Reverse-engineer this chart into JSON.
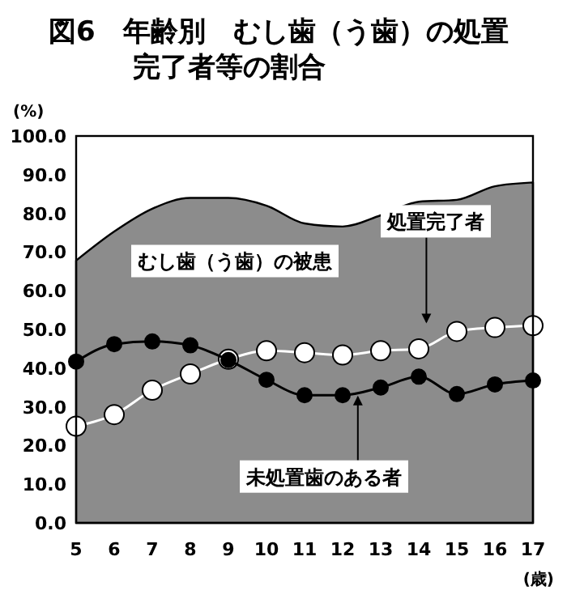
{
  "chart_data": {
    "type": "line",
    "title": "図6　年齢別　むし歯（う歯）の処置完了者等の割合",
    "ylabel": "(%)",
    "xlabel": "(歳)",
    "x": [
      5,
      6,
      7,
      8,
      9,
      10,
      11,
      12,
      13,
      14,
      15,
      16,
      17
    ],
    "xlim": [
      5,
      17
    ],
    "xticks": [
      5,
      6,
      7,
      8,
      9,
      10,
      11,
      12,
      13,
      14,
      15,
      16,
      17
    ],
    "ylim": [
      0,
      100
    ],
    "yticks": [
      {
        "value": 0,
        "label": "0.0"
      },
      {
        "value": 10,
        "label": "10.0"
      },
      {
        "value": 20,
        "label": "20.0"
      },
      {
        "value": 30,
        "label": "30.0"
      },
      {
        "value": 40,
        "label": "40.0"
      },
      {
        "value": 50,
        "label": "50.0"
      },
      {
        "value": 60,
        "label": "60.0"
      },
      {
        "value": 70,
        "label": "70.0"
      },
      {
        "value": 80,
        "label": "80.0"
      },
      {
        "value": 90,
        "label": "90.0"
      },
      {
        "value": 100,
        "label": "100.0"
      }
    ],
    "grid": false,
    "legend": false,
    "series": [
      {
        "name": "むし歯（う歯）の被患",
        "type": "area",
        "color": "#8c8c8c",
        "marker": "none",
        "values": [
          67.8,
          75.3,
          81.2,
          84,
          84,
          82,
          77.4,
          76.6,
          79.5,
          83,
          83.5,
          87,
          88
        ]
      },
      {
        "name": "処置完了者",
        "color": "#ffffff",
        "marker": "circle",
        "values": [
          25,
          28,
          34.3,
          38.5,
          42.3,
          44.5,
          44,
          43.4,
          44.5,
          45,
          49.5,
          50.5,
          51
        ]
      },
      {
        "name": "未処置歯のある者",
        "color": "#000000",
        "marker": "circle",
        "values": [
          41.7,
          46.2,
          46.9,
          45.9,
          42.1,
          37,
          33,
          33,
          35,
          37.8,
          33.3,
          35.8,
          36.8
        ]
      }
    ]
  }
}
